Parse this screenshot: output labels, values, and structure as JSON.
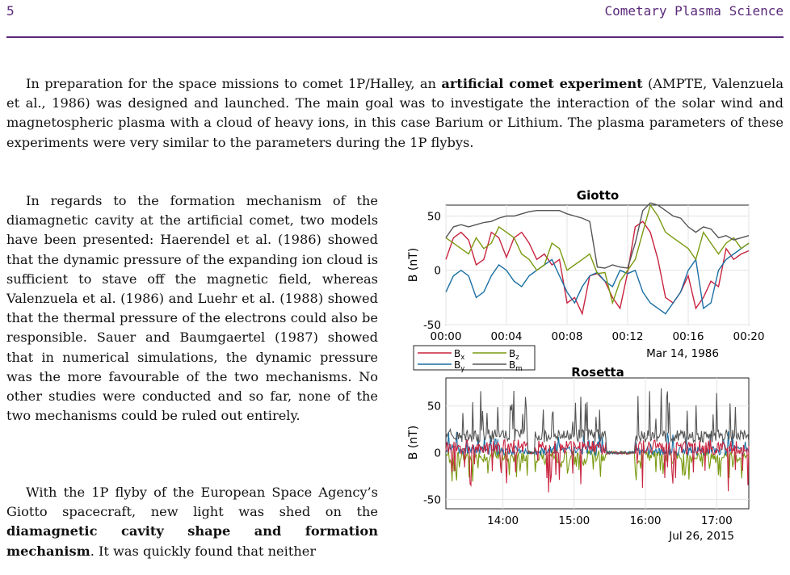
{
  "header": {
    "page_number": "5",
    "running_title": "Cometary Plasma Science"
  },
  "paragraphs": {
    "p1": [
      {
        "t": "In preparation for the space missions to comet 1P/Halley, an "
      },
      {
        "t": "artificial comet experiment",
        "b": true
      },
      {
        "t": " (AMPTE, Valenzuela et al., 1986) was designed and launched. The main goal was to investigate the interaction of the solar wind and magnetospheric plasma with a cloud of heavy ions, in this case Barium or Lithium. The plasma parameters of these experiments were very similar to the parameters during the 1P flybys."
      }
    ],
    "p2": [
      {
        "t": "In regards to the formation mechanism of the diamagnetic cavity at the artificial comet, two models have been presented: Haerendel et al. (1986) showed that the dynamic pressure of the expanding ion cloud is sufficient to stave off the magnetic field, whereas Valenzuela et al. (1986) and Luehr et al. (1988) showed that the thermal pressure of the electrons could also be responsible. Sauer and Baumgaertel (1987) showed that in numerical simulations, the dynamic pressure was the more favourable of the two mechanisms. No other studies were conducted and so far, none of the two mechanisms could be ruled out entirely."
      }
    ],
    "p3": [
      {
        "t": "With the 1P flyby of the European Space Agency’s Giotto spacecraft, new light was shed on the "
      },
      {
        "t": "diamagnetic cavity shape and formation mechanism",
        "b": true
      },
      {
        "t": ". It was quickly found that neither"
      }
    ]
  },
  "chart_data": [
    {
      "type": "line",
      "title": "Giotto",
      "ylabel": "B (nT)",
      "ylim": [
        -50,
        60
      ],
      "yticks": [
        -50,
        0,
        50
      ],
      "xticklabels": [
        "00:00",
        "00:04",
        "00:08",
        "00:12",
        "00:16",
        "00:20"
      ],
      "date_label": "Mar 14, 1986",
      "grid": true,
      "x_minutes": [
        0,
        0.5,
        1,
        1.5,
        2,
        2.5,
        3,
        3.5,
        4,
        4.5,
        5,
        5.5,
        6,
        6.5,
        7,
        7.5,
        8,
        8.5,
        9,
        9.5,
        10,
        10.5,
        11,
        11.5,
        12,
        12.5,
        13,
        13.5,
        14,
        14.5,
        15,
        15.5,
        16,
        16.5,
        17,
        17.5,
        18,
        18.5,
        19,
        19.5,
        20
      ],
      "series": [
        {
          "name": "Bx",
          "color": "#c8243f",
          "values": [
            10,
            30,
            35,
            28,
            5,
            10,
            35,
            30,
            12,
            30,
            35,
            25,
            10,
            15,
            5,
            10,
            -30,
            -25,
            -40,
            -5,
            -3,
            -10,
            -25,
            -35,
            -2,
            40,
            45,
            35,
            10,
            -25,
            -30,
            -20,
            -5,
            -35,
            -25,
            -10,
            -15,
            20,
            10,
            15,
            18
          ]
        },
        {
          "name": "By",
          "color": "#1a6fa3",
          "values": [
            -20,
            -5,
            0,
            -5,
            -25,
            -20,
            -5,
            5,
            0,
            -10,
            -15,
            -5,
            0,
            5,
            10,
            -5,
            -20,
            -30,
            -15,
            -5,
            -2,
            -10,
            -15,
            0,
            -3,
            0,
            -20,
            -30,
            -35,
            -40,
            -30,
            -20,
            0,
            10,
            -35,
            -30,
            0,
            10,
            15,
            20,
            25
          ]
        },
        {
          "name": "Bz",
          "color": "#7a9a12",
          "values": [
            30,
            25,
            20,
            15,
            30,
            20,
            25,
            40,
            35,
            30,
            15,
            10,
            0,
            5,
            25,
            20,
            0,
            5,
            10,
            15,
            -3,
            -2,
            -30,
            -10,
            0,
            10,
            35,
            60,
            50,
            35,
            30,
            25,
            20,
            10,
            35,
            25,
            15,
            25,
            30,
            20,
            25
          ]
        },
        {
          "name": "Bm",
          "color": "#555555",
          "values": [
            30,
            40,
            42,
            40,
            42,
            44,
            45,
            48,
            50,
            50,
            52,
            54,
            55,
            55,
            55,
            55,
            52,
            50,
            48,
            45,
            3,
            2,
            5,
            3,
            2,
            25,
            55,
            62,
            60,
            55,
            50,
            48,
            40,
            35,
            40,
            38,
            30,
            32,
            28,
            30,
            32
          ]
        }
      ]
    },
    {
      "type": "line",
      "title": "Rosetta",
      "ylabel": "B (nT)",
      "ylim": [
        -60,
        80
      ],
      "yticks": [
        -50,
        0,
        50
      ],
      "xticklabels": [
        "14:00",
        "15:00",
        "16:00",
        "17:00"
      ],
      "date_label": "Jul 26, 2015",
      "grid": true,
      "legend": {
        "entries": [
          "Bx",
          "Bz",
          "By",
          "Bm"
        ],
        "position": "top-left"
      }
    }
  ]
}
